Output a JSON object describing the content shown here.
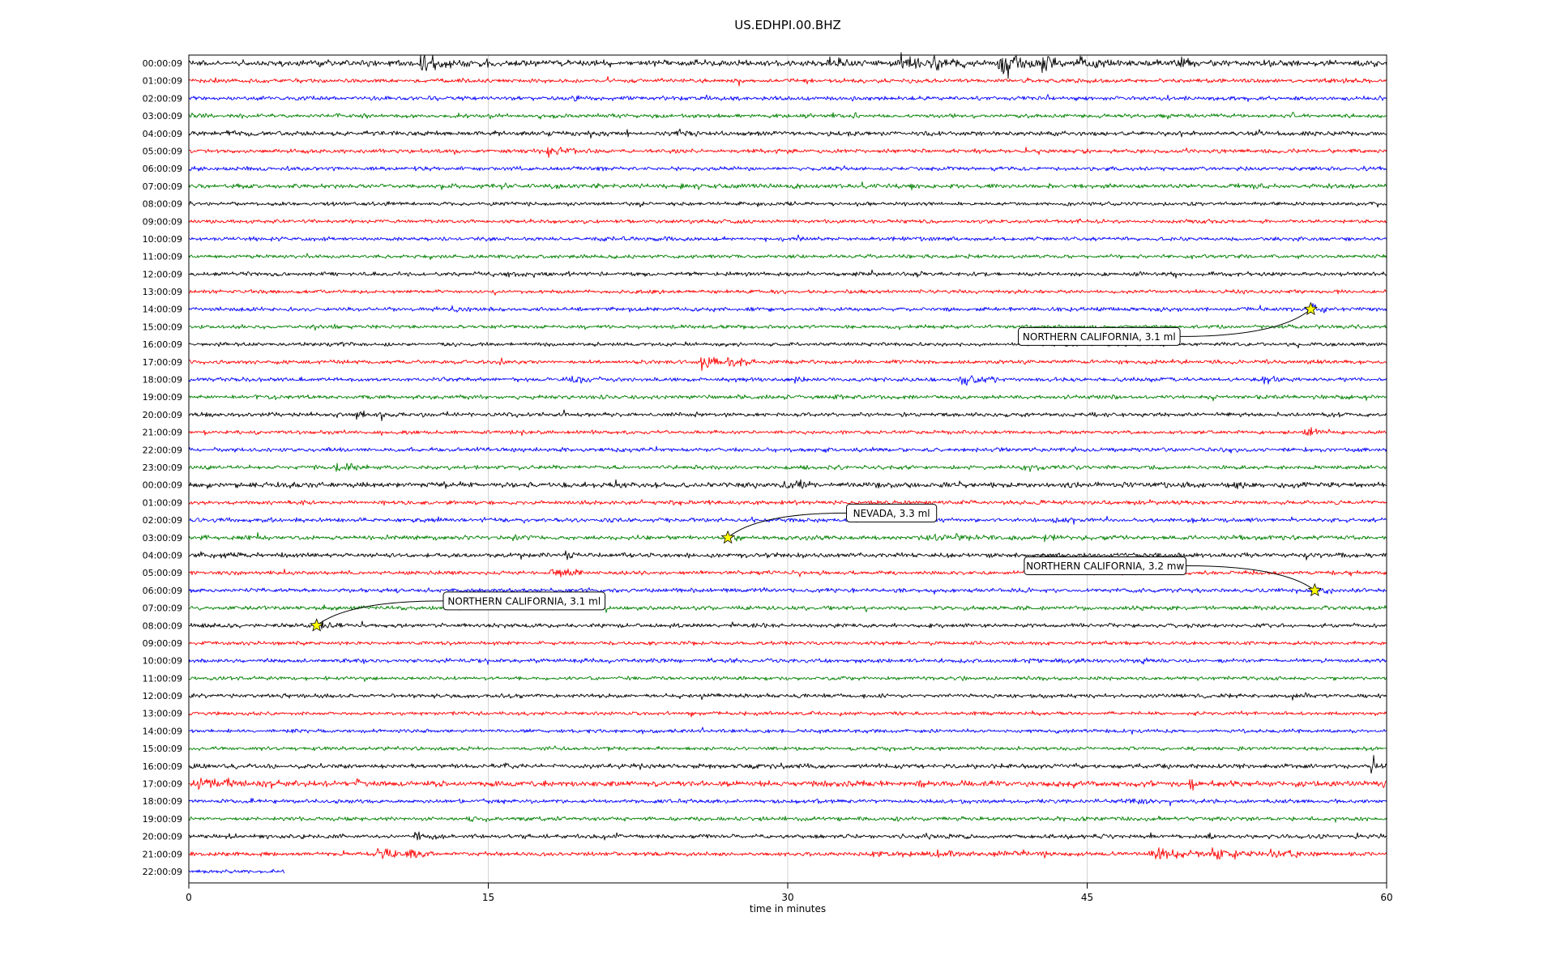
{
  "chart_data": {
    "type": "line",
    "subtype": "seismogram_dayplot",
    "title": "US.EDHPI.00.BHZ",
    "xlabel": "time in minutes",
    "xlim": [
      0,
      60
    ],
    "xticks": [
      "0",
      "15",
      "30",
      "45",
      "60"
    ],
    "grid": {
      "vertical": [
        15,
        30,
        45
      ],
      "color": "#c9c9c9"
    },
    "color_cycle": [
      "#000000",
      "#ff0000",
      "#0000ff",
      "#008000"
    ],
    "marker": {
      "shape": "star",
      "fill": "#ffff00",
      "edge": "#000000"
    },
    "traces": [
      {
        "label": "00:00:09",
        "noise": 1.5,
        "bursts": [
          [
            11.5,
            1.8,
            4.5
          ],
          [
            14.6,
            0.5,
            3
          ],
          [
            24.8,
            0.8,
            2
          ],
          [
            32,
            1,
            3
          ],
          [
            35.5,
            1.5,
            4
          ],
          [
            37,
            2,
            3
          ],
          [
            40.5,
            2,
            5
          ],
          [
            42.5,
            2,
            3.5
          ],
          [
            44.5,
            1.5,
            3
          ],
          [
            49.5,
            1,
            3.5
          ]
        ]
      },
      {
        "label": "01:00:09",
        "noise": 1,
        "bursts": [
          [
            13.2,
            0.4,
            3
          ]
        ]
      },
      {
        "label": "02:00:09",
        "noise": 1,
        "bursts": [
          [
            19.2,
            0.4,
            2.5
          ],
          [
            36.2,
            0.3,
            2
          ]
        ]
      },
      {
        "label": "03:00:09",
        "noise": 1,
        "bursts": [
          [
            15,
            0.6,
            2.5
          ],
          [
            33.3,
            0.3,
            2.5
          ],
          [
            55.2,
            0.5,
            2.5
          ]
        ]
      },
      {
        "label": "04:00:09",
        "noise": 1.1,
        "bursts": [
          [
            1.8,
            0.6,
            2
          ],
          [
            24.3,
            1.5,
            2
          ],
          [
            29.8,
            0.6,
            1.8
          ]
        ]
      },
      {
        "label": "05:00:09",
        "noise": 1,
        "bursts": [
          [
            17.8,
            1.6,
            4
          ]
        ]
      },
      {
        "label": "06:00:09",
        "noise": 1,
        "bursts": []
      },
      {
        "label": "07:00:09",
        "noise": 1.1,
        "bursts": []
      },
      {
        "label": "08:00:09",
        "noise": 0.9,
        "bursts": []
      },
      {
        "label": "09:00:09",
        "noise": 0.9,
        "bursts": []
      },
      {
        "label": "10:00:09",
        "noise": 1,
        "bursts": [
          [
            20,
            8,
            1.3
          ]
        ]
      },
      {
        "label": "11:00:09",
        "noise": 0.9,
        "bursts": []
      },
      {
        "label": "12:00:09",
        "noise": 1,
        "bursts": [
          [
            14,
            6,
            1.3
          ]
        ]
      },
      {
        "label": "13:00:09",
        "noise": 0.9,
        "bursts": []
      },
      {
        "label": "14:00:09",
        "noise": 1,
        "bursts": [
          [
            56,
            1.2,
            3
          ]
        ]
      },
      {
        "label": "15:00:09",
        "noise": 0.9,
        "bursts": []
      },
      {
        "label": "16:00:09",
        "noise": 0.9,
        "bursts": []
      },
      {
        "label": "17:00:09",
        "noise": 1,
        "bursts": [
          [
            25.6,
            1.2,
            5
          ],
          [
            26.9,
            1.4,
            3.5
          ]
        ]
      },
      {
        "label": "18:00:09",
        "noise": 1,
        "bursts": [
          [
            19,
            1.8,
            2.5
          ],
          [
            30.3,
            0.7,
            2.2
          ],
          [
            38.6,
            2,
            2.8
          ],
          [
            53.7,
            1,
            2.5
          ]
        ]
      },
      {
        "label": "19:00:09",
        "noise": 1,
        "bursts": [
          [
            20.5,
            0.4,
            2.2
          ],
          [
            32,
            0.4,
            2
          ]
        ]
      },
      {
        "label": "20:00:09",
        "noise": 1,
        "bursts": [
          [
            8.2,
            1.6,
            2.6
          ]
        ]
      },
      {
        "label": "21:00:09",
        "noise": 0.9,
        "bursts": [
          [
            55.8,
            1.8,
            3
          ]
        ]
      },
      {
        "label": "22:00:09",
        "noise": 1,
        "bursts": [
          [
            8.4,
            0.5,
            1.8
          ],
          [
            31.8,
            0.5,
            1.8
          ],
          [
            52,
            0.6,
            1.8
          ]
        ]
      },
      {
        "label": "23:00:09",
        "noise": 1,
        "bursts": [
          [
            7.2,
            1.8,
            2.6
          ],
          [
            41.7,
            0.9,
            2.6
          ],
          [
            44.2,
            0.5,
            2
          ]
        ]
      },
      {
        "label": "00:00:09",
        "noise": 1.3,
        "bursts": [
          [
            13.5,
            0.5,
            2.2
          ],
          [
            21.2,
            0.5,
            2
          ],
          [
            24.6,
            0.5,
            2
          ],
          [
            29.8,
            1.3,
            2.6
          ],
          [
            52.3,
            0.6,
            2.2
          ]
        ]
      },
      {
        "label": "01:00:09",
        "noise": 1,
        "bursts": [
          [
            42.3,
            0.7,
            2.4
          ]
        ]
      },
      {
        "label": "02:00:09",
        "noise": 1,
        "bursts": [
          [
            3.9,
            0.5,
            2
          ],
          [
            21,
            1,
            2.2
          ],
          [
            43.3,
            0.6,
            2
          ]
        ]
      },
      {
        "label": "03:00:09",
        "noise": 1.1,
        "bursts": [
          [
            16.2,
            0.9,
            2.4
          ],
          [
            27.2,
            0.6,
            2
          ],
          [
            36,
            9,
            1.4
          ],
          [
            42.8,
            0.6,
            2.4
          ]
        ]
      },
      {
        "label": "04:00:09",
        "noise": 1.1,
        "bursts": [
          [
            0.5,
            1.8,
            2
          ],
          [
            18.8,
            0.8,
            3.5
          ]
        ]
      },
      {
        "label": "05:00:09",
        "noise": 1,
        "bursts": [
          [
            18,
            1.8,
            3.5
          ]
        ]
      },
      {
        "label": "06:00:09",
        "noise": 1,
        "bursts": [
          [
            56.3,
            1.1,
            3
          ]
        ]
      },
      {
        "label": "07:00:09",
        "noise": 1,
        "bursts": []
      },
      {
        "label": "08:00:09",
        "noise": 1,
        "bursts": [
          [
            6.6,
            1.3,
            3.2
          ]
        ]
      },
      {
        "label": "09:00:09",
        "noise": 0.9,
        "bursts": []
      },
      {
        "label": "10:00:09",
        "noise": 1,
        "bursts": []
      },
      {
        "label": "11:00:09",
        "noise": 0.9,
        "bursts": []
      },
      {
        "label": "12:00:09",
        "noise": 1,
        "bursts": []
      },
      {
        "label": "13:00:09",
        "noise": 0.9,
        "bursts": []
      },
      {
        "label": "14:00:09",
        "noise": 0.9,
        "bursts": []
      },
      {
        "label": "15:00:09",
        "noise": 0.9,
        "bursts": []
      },
      {
        "label": "16:00:09",
        "noise": 1.1,
        "bursts": [
          [
            28,
            3,
            1.4
          ],
          [
            59.2,
            0.35,
            6
          ]
        ]
      },
      {
        "label": "17:00:09",
        "noise": 1.4,
        "bursts": [
          [
            0.2,
            1.5,
            2.6
          ],
          [
            1.7,
            1.5,
            2
          ],
          [
            8.3,
            0.5,
            2.2
          ],
          [
            36.3,
            1,
            1.9
          ],
          [
            37.8,
            1,
            1.9
          ],
          [
            50.1,
            0.6,
            2.4
          ],
          [
            55.4,
            0.5,
            2
          ]
        ]
      },
      {
        "label": "18:00:09",
        "noise": 1,
        "bursts": [
          [
            3,
            0.5,
            2
          ],
          [
            18.6,
            0.5,
            2
          ],
          [
            36.8,
            0.6,
            1.8
          ],
          [
            46.4,
            3,
            1.8
          ]
        ]
      },
      {
        "label": "19:00:09",
        "noise": 1,
        "bursts": [
          [
            14,
            0.9,
            2.4
          ]
        ]
      },
      {
        "label": "20:00:09",
        "noise": 1,
        "bursts": [
          [
            2,
            0.5,
            2
          ],
          [
            11.2,
            1.7,
            2.6
          ],
          [
            21.2,
            0.6,
            2
          ],
          [
            36.8,
            0.6,
            2
          ],
          [
            50.7,
            0.7,
            2.6
          ]
        ]
      },
      {
        "label": "21:00:09",
        "noise": 1,
        "bursts": [
          [
            9.4,
            1.2,
            4.5
          ],
          [
            10.8,
            1.8,
            3
          ],
          [
            34,
            3,
            2.2
          ],
          [
            37,
            3,
            2.2
          ],
          [
            40,
            3,
            2
          ],
          [
            48,
            3,
            3
          ],
          [
            51,
            3,
            3
          ],
          [
            54,
            2.5,
            2.8
          ]
        ]
      },
      {
        "label": "22:00:09",
        "noise": 1,
        "xmax": 4.8,
        "bursts": []
      }
    ],
    "events": [
      {
        "label": "NORTHERN CALIFORNIA, 3.1 ml",
        "trace_index": 14,
        "minute": 56.2,
        "box_minute": 45.6,
        "box_row": 15.55,
        "anchor": "right"
      },
      {
        "label": "NEVADA, 3.3 ml",
        "trace_index": 27,
        "minute": 27.0,
        "box_minute": 35.2,
        "box_row": 25.6,
        "anchor": "left"
      },
      {
        "label": "NORTHERN CALIFORNIA, 3.2 mw",
        "trace_index": 30,
        "minute": 56.4,
        "box_minute": 45.9,
        "box_row": 28.6,
        "anchor": "right"
      },
      {
        "label": "NORTHERN CALIFORNIA, 3.1 ml",
        "trace_index": 32,
        "minute": 6.4,
        "box_minute": 16.8,
        "box_row": 30.6,
        "anchor": "left"
      }
    ]
  }
}
